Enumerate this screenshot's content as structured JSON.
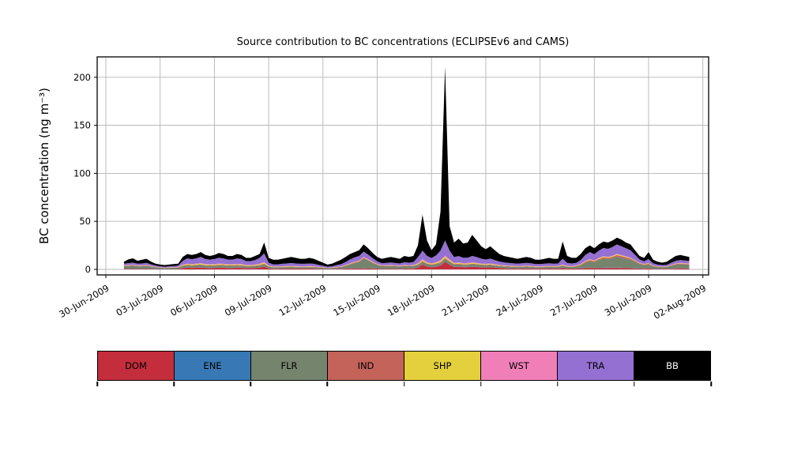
{
  "chart_data": {
    "type": "area",
    "stacked": true,
    "title": "Source contribution to BC concentrations (ECLIPSEv6 and CAMS)",
    "ylabel": "BC concentration (ng m⁻³)",
    "xlabel": "",
    "grid": true,
    "grid_color": "#b4b4b4",
    "frame_color": "#000000",
    "legend_position": "bottom",
    "yticks": [
      0,
      50,
      100,
      150,
      200
    ],
    "ylim": [
      -5,
      222
    ],
    "xtick_labels": [
      {
        "label": "30-Jun-2009",
        "day": 0
      },
      {
        "label": "03-Jul-2009",
        "day": 3
      },
      {
        "label": "06-Jul-2009",
        "day": 6
      },
      {
        "label": "09-Jul-2009",
        "day": 9
      },
      {
        "label": "12-Jul-2009",
        "day": 12
      },
      {
        "label": "15-Jul-2009",
        "day": 15
      },
      {
        "label": "18-Jul-2009",
        "day": 18
      },
      {
        "label": "21-Jul-2009",
        "day": 21
      },
      {
        "label": "24-Jul-2009",
        "day": 24
      },
      {
        "label": "27-Jul-2009",
        "day": 27
      },
      {
        "label": "30-Jul-2009",
        "day": 30
      },
      {
        "label": "02-Aug-2009",
        "day": 33
      }
    ],
    "x_start_label": "01-Jul-2009 00:00",
    "x_start_day_offset": 1,
    "x_step_hours": 6,
    "series": [
      {
        "name": "DOM",
        "color": "#c42e3c",
        "label_color": "#000000",
        "values": [
          0.5,
          0.5,
          0.6,
          0.5,
          0.5,
          0.6,
          0.4,
          0.3,
          0.3,
          0.2,
          0.3,
          0.3,
          0.4,
          1.2,
          1.8,
          1.6,
          1.8,
          2.0,
          1.6,
          1.5,
          1.6,
          1.8,
          1.7,
          1.5,
          1.5,
          1.7,
          1.6,
          1.2,
          1.2,
          1.4,
          1.8,
          3.0,
          1.0,
          0.7,
          0.7,
          0.8,
          0.8,
          0.9,
          0.8,
          0.8,
          0.8,
          0.8,
          0.8,
          0.6,
          0.5,
          0.3,
          0.4,
          0.5,
          0.6,
          0.8,
          0.9,
          1.0,
          1.0,
          1.1,
          1.0,
          0.9,
          0.8,
          0.6,
          0.7,
          0.7,
          0.7,
          0.6,
          0.8,
          0.7,
          0.9,
          2.0,
          5.0,
          3.0,
          2.2,
          2.8,
          4.0,
          8.0,
          5.0,
          2.5,
          2.8,
          2.4,
          2.4,
          2.8,
          2.5,
          2.2,
          2.0,
          2.2,
          1.8,
          1.4,
          1.2,
          1.1,
          1.0,
          0.9,
          1.0,
          1.1,
          1.0,
          0.8,
          0.8,
          0.9,
          1.0,
          0.9,
          0.9,
          1.5,
          1.0,
          0.9,
          0.9,
          1.1,
          1.3,
          1.4,
          1.2,
          1.4,
          1.5,
          1.5,
          1.5,
          1.6,
          1.5,
          1.4,
          1.3,
          1.1,
          0.8,
          0.7,
          0.9,
          0.5,
          0.4,
          0.4,
          0.4,
          0.6,
          0.8,
          0.9,
          0.8,
          0.8
        ]
      },
      {
        "name": "ENE",
        "color": "#3879b5",
        "label_color": "#000000",
        "values": [
          0.2,
          0.2,
          0.2,
          0.2,
          0.2,
          0.2,
          0.2,
          0.2,
          0.1,
          0.1,
          0.1,
          0.1,
          0.1,
          0.2,
          0.2,
          0.2,
          0.2,
          0.2,
          0.2,
          0.2,
          0.2,
          0.2,
          0.2,
          0.2,
          0.2,
          0.2,
          0.2,
          0.2,
          0.2,
          0.2,
          0.2,
          0.2,
          0.2,
          0.2,
          0.2,
          0.2,
          0.2,
          0.2,
          0.2,
          0.2,
          0.2,
          0.2,
          0.2,
          0.2,
          0.1,
          0.1,
          0.1,
          0.2,
          0.2,
          0.2,
          0.2,
          0.2,
          0.2,
          0.2,
          0.2,
          0.2,
          0.2,
          0.2,
          0.2,
          0.2,
          0.2,
          0.2,
          0.2,
          0.2,
          0.2,
          0.2,
          0.3,
          0.2,
          0.2,
          0.2,
          0.3,
          0.3,
          0.3,
          0.2,
          0.2,
          0.2,
          0.2,
          0.2,
          0.2,
          0.2,
          0.2,
          0.2,
          0.2,
          0.2,
          0.2,
          0.2,
          0.2,
          0.2,
          0.2,
          0.2,
          0.2,
          0.2,
          0.2,
          0.2,
          0.2,
          0.2,
          0.2,
          0.2,
          0.2,
          0.2,
          0.2,
          0.2,
          0.2,
          0.2,
          0.2,
          0.2,
          0.2,
          0.2,
          0.2,
          0.2,
          0.2,
          0.2,
          0.2,
          0.2,
          0.2,
          0.2,
          0.2,
          0.2,
          0.1,
          0.1,
          0.1,
          0.2,
          0.2,
          0.2,
          0.2,
          0.2
        ]
      },
      {
        "name": "FLR",
        "color": "#75846d",
        "label_color": "#000000",
        "values": [
          2.5,
          2.8,
          3.0,
          2.5,
          2.5,
          2.8,
          2.2,
          1.6,
          1.2,
          1.0,
          1.2,
          1.3,
          1.4,
          2.0,
          2.2,
          2.0,
          2.2,
          2.4,
          2.0,
          2.0,
          2.0,
          2.2,
          2.1,
          2.0,
          2.0,
          2.1,
          2.0,
          1.8,
          1.8,
          1.9,
          2.0,
          2.2,
          1.5,
          1.2,
          1.2,
          1.3,
          1.4,
          1.5,
          1.4,
          1.3,
          1.3,
          1.4,
          1.3,
          1.1,
          1.0,
          0.8,
          0.9,
          1.1,
          1.5,
          2.5,
          4.0,
          5.5,
          6.5,
          10.0,
          8.0,
          5.5,
          3.5,
          2.5,
          2.5,
          2.6,
          2.4,
          2.2,
          2.6,
          2.4,
          2.4,
          2.5,
          2.5,
          2.3,
          2.2,
          2.3,
          2.4,
          2.5,
          2.4,
          2.2,
          2.3,
          2.2,
          2.2,
          2.4,
          2.3,
          2.1,
          2.0,
          2.1,
          2.0,
          1.8,
          1.7,
          1.6,
          1.5,
          1.4,
          1.5,
          1.6,
          1.5,
          1.3,
          1.3,
          1.4,
          1.5,
          1.4,
          1.5,
          2.0,
          1.6,
          1.5,
          1.8,
          3.0,
          5.5,
          7.0,
          6.0,
          8.0,
          9.5,
          9.0,
          10.0,
          11.5,
          10.5,
          9.5,
          8.5,
          6.5,
          4.5,
          3.5,
          4.0,
          2.5,
          2.0,
          1.8,
          2.0,
          2.8,
          3.8,
          4.2,
          4.0,
          3.8
        ]
      },
      {
        "name": "IND",
        "color": "#c4635a",
        "label_color": "#000000",
        "values": [
          0.4,
          0.4,
          0.4,
          0.4,
          0.4,
          0.4,
          0.3,
          0.3,
          0.2,
          0.2,
          0.2,
          0.2,
          0.3,
          0.5,
          0.5,
          0.5,
          0.5,
          0.6,
          0.5,
          0.5,
          0.5,
          0.5,
          0.5,
          0.5,
          0.5,
          0.5,
          0.5,
          0.4,
          0.4,
          0.4,
          0.5,
          0.5,
          0.4,
          0.3,
          0.3,
          0.3,
          0.3,
          0.3,
          0.3,
          0.3,
          0.3,
          0.3,
          0.3,
          0.3,
          0.2,
          0.2,
          0.2,
          0.3,
          0.3,
          0.4,
          0.5,
          0.6,
          0.7,
          0.8,
          0.7,
          0.6,
          0.5,
          0.4,
          0.4,
          0.4,
          0.4,
          0.4,
          0.4,
          0.4,
          0.4,
          0.5,
          0.8,
          0.6,
          0.5,
          0.6,
          0.8,
          1.0,
          0.8,
          0.6,
          0.6,
          0.5,
          0.5,
          0.6,
          0.5,
          0.5,
          0.5,
          0.5,
          0.4,
          0.4,
          0.4,
          0.4,
          0.3,
          0.3,
          0.3,
          0.4,
          0.3,
          0.3,
          0.3,
          0.3,
          0.3,
          0.3,
          0.3,
          0.4,
          0.3,
          0.3,
          0.4,
          0.6,
          0.9,
          1.1,
          1.0,
          1.2,
          1.4,
          1.3,
          1.4,
          1.6,
          1.5,
          1.4,
          1.2,
          1.0,
          0.7,
          0.6,
          0.7,
          0.4,
          0.3,
          0.3,
          0.3,
          0.5,
          0.7,
          0.8,
          0.7,
          0.7
        ]
      },
      {
        "name": "SHP",
        "color": "#e3d03c",
        "label_color": "#000000",
        "values": [
          0.3,
          0.3,
          0.3,
          0.3,
          0.3,
          0.3,
          0.3,
          0.2,
          0.2,
          0.2,
          0.2,
          0.2,
          0.3,
          0.6,
          0.8,
          0.8,
          0.8,
          0.9,
          0.8,
          0.7,
          0.8,
          0.9,
          0.8,
          0.7,
          0.7,
          0.8,
          0.8,
          0.6,
          0.6,
          0.7,
          0.9,
          1.2,
          0.5,
          0.4,
          0.4,
          0.4,
          0.5,
          0.5,
          0.5,
          0.4,
          0.4,
          0.5,
          0.4,
          0.3,
          0.3,
          0.2,
          0.2,
          0.3,
          0.3,
          0.4,
          0.4,
          0.4,
          0.4,
          0.5,
          0.5,
          0.4,
          0.4,
          0.3,
          0.3,
          0.4,
          0.3,
          0.3,
          0.4,
          0.4,
          0.4,
          0.8,
          1.2,
          0.9,
          0.8,
          1.0,
          1.2,
          1.5,
          1.2,
          0.8,
          0.9,
          0.8,
          0.8,
          0.9,
          0.8,
          0.7,
          0.7,
          0.7,
          0.6,
          0.5,
          0.5,
          0.4,
          0.4,
          0.4,
          0.4,
          0.4,
          0.4,
          0.4,
          0.4,
          0.4,
          0.4,
          0.4,
          0.4,
          0.6,
          0.4,
          0.4,
          0.4,
          0.5,
          0.6,
          0.6,
          0.6,
          0.7,
          0.7,
          0.7,
          0.7,
          0.8,
          0.7,
          0.7,
          0.6,
          0.5,
          0.4,
          0.4,
          0.5,
          0.3,
          0.2,
          0.2,
          0.2,
          0.3,
          0.4,
          0.4,
          0.4,
          0.4
        ]
      },
      {
        "name": "WST",
        "color": "#f07fb8",
        "label_color": "#000000",
        "values": [
          0.3,
          0.3,
          0.3,
          0.3,
          0.3,
          0.3,
          0.3,
          0.2,
          0.2,
          0.2,
          0.2,
          0.2,
          0.2,
          0.4,
          0.5,
          0.5,
          0.5,
          0.5,
          0.5,
          0.5,
          0.5,
          0.5,
          0.5,
          0.5,
          0.5,
          0.5,
          0.5,
          0.4,
          0.4,
          0.4,
          0.5,
          0.6,
          0.4,
          0.3,
          0.3,
          0.3,
          0.3,
          0.3,
          0.3,
          0.3,
          0.3,
          0.3,
          0.3,
          0.3,
          0.2,
          0.2,
          0.2,
          0.3,
          0.3,
          0.3,
          0.4,
          0.4,
          0.4,
          0.5,
          0.4,
          0.4,
          0.3,
          0.3,
          0.3,
          0.3,
          0.3,
          0.3,
          0.3,
          0.3,
          0.3,
          0.5,
          0.8,
          0.6,
          0.5,
          0.6,
          0.8,
          1.0,
          0.8,
          0.5,
          0.6,
          0.5,
          0.5,
          0.6,
          0.5,
          0.5,
          0.4,
          0.5,
          0.4,
          0.4,
          0.3,
          0.3,
          0.3,
          0.3,
          0.3,
          0.3,
          0.3,
          0.3,
          0.3,
          0.3,
          0.3,
          0.3,
          0.3,
          0.4,
          0.3,
          0.3,
          0.3,
          0.4,
          0.4,
          0.5,
          0.4,
          0.5,
          0.5,
          0.5,
          0.5,
          0.5,
          0.5,
          0.5,
          0.4,
          0.4,
          0.3,
          0.3,
          0.4,
          0.2,
          0.2,
          0.2,
          0.2,
          0.3,
          0.3,
          0.3,
          0.3,
          0.3
        ]
      },
      {
        "name": "TRA",
        "color": "#9470d2",
        "label_color": "#000000",
        "values": [
          1.8,
          2.0,
          2.2,
          1.8,
          2.0,
          2.2,
          1.6,
          1.2,
          1.0,
          0.9,
          1.0,
          1.2,
          1.3,
          4.0,
          5.5,
          5.0,
          5.5,
          6.5,
          5.2,
          4.8,
          5.2,
          6.0,
          5.6,
          4.8,
          4.8,
          5.6,
          5.2,
          4.0,
          4.0,
          4.6,
          6.0,
          9.0,
          3.0,
          2.2,
          2.2,
          2.5,
          2.7,
          3.0,
          2.7,
          2.5,
          2.5,
          2.7,
          2.5,
          2.0,
          1.5,
          1.0,
          1.2,
          1.8,
          2.2,
          3.0,
          4.0,
          4.4,
          4.8,
          5.4,
          4.7,
          3.8,
          2.8,
          2.2,
          2.4,
          2.6,
          2.4,
          2.2,
          2.8,
          2.6,
          3.0,
          6.0,
          9.0,
          6.5,
          5.5,
          7.0,
          10.0,
          16.0,
          9.0,
          6.0,
          6.5,
          5.5,
          5.5,
          6.5,
          6.0,
          5.0,
          4.5,
          5.0,
          4.2,
          3.5,
          3.0,
          2.8,
          2.6,
          2.4,
          2.6,
          2.8,
          2.6,
          2.2,
          2.2,
          2.4,
          2.6,
          2.4,
          2.6,
          6.0,
          3.0,
          2.6,
          2.8,
          4.0,
          6.0,
          7.2,
          6.5,
          7.6,
          8.5,
          8.2,
          9.0,
          9.8,
          9.2,
          8.3,
          7.8,
          5.5,
          3.5,
          2.8,
          4.0,
          2.2,
          1.8,
          1.5,
          1.6,
          2.2,
          2.8,
          3.0,
          2.8,
          2.6
        ]
      },
      {
        "name": "BB",
        "color": "#000000",
        "label_color": "#ffffff",
        "values": [
          2.0,
          4.0,
          4.5,
          3.0,
          3.8,
          4.2,
          2.7,
          2.0,
          1.8,
          1.7,
          1.8,
          2.0,
          2.0,
          4.1,
          4.5,
          4.4,
          4.5,
          4.9,
          4.2,
          3.8,
          4.2,
          4.9,
          4.6,
          3.8,
          3.8,
          4.6,
          4.2,
          3.4,
          3.4,
          4.4,
          4.1,
          11.3,
          5.0,
          4.7,
          4.7,
          5.2,
          5.8,
          6.3,
          5.8,
          5.2,
          5.2,
          5.8,
          5.2,
          4.2,
          3.2,
          2.2,
          2.8,
          3.5,
          4.6,
          5.4,
          5.6,
          5.5,
          6.0,
          7.5,
          6.5,
          5.2,
          4.5,
          4.5,
          5.2,
          5.8,
          5.3,
          4.8,
          6.5,
          6.0,
          6.4,
          12.5,
          37.4,
          15.9,
          8.1,
          11.5,
          40.5,
          180.7,
          25.5,
          15.2,
          18.1,
          14.9,
          15.9,
          22.0,
          17.2,
          12.8,
          10.7,
          12.8,
          10.4,
          7.8,
          6.7,
          6.2,
          5.7,
          5.1,
          5.7,
          6.2,
          5.7,
          4.5,
          4.5,
          5.1,
          5.7,
          5.1,
          4.8,
          17.9,
          7.2,
          5.8,
          5.2,
          6.2,
          7.1,
          7.0,
          6.1,
          6.4,
          6.7,
          6.6,
          6.7,
          7.0,
          6.9,
          6.0,
          6.0,
          4.8,
          3.6,
          3.5,
          7.3,
          3.7,
          3.0,
          2.5,
          3.2,
          4.1,
          5.0,
          5.2,
          4.8,
          4.2
        ]
      }
    ]
  }
}
